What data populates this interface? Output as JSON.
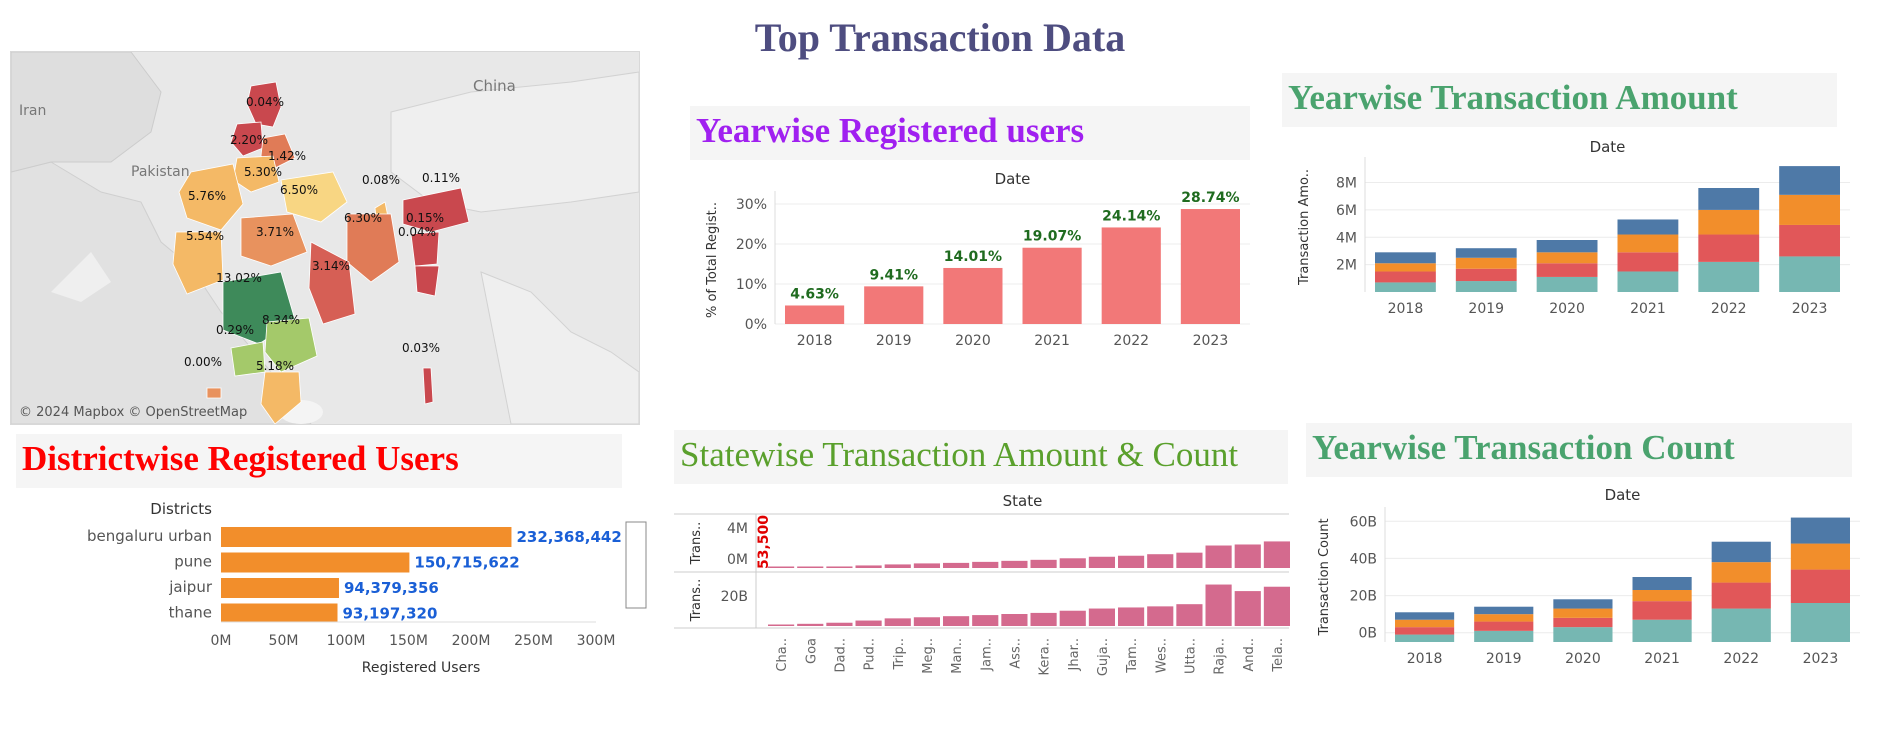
{
  "page_title": "Top Transaction Data",
  "colors": {
    "title": "#4e4d80",
    "users_title": "#a020f0",
    "amount_title": "#4aa36e",
    "district_title": "#ff0000",
    "statewise_title": "#5aa02c",
    "bar_salmon": "#f27878",
    "bar_orange": "#f28e2b",
    "bar_pink": "#d46a8e",
    "label_green": "#1f6b1f",
    "label_blue": "#1a5fd6",
    "label_red": "#e00000",
    "stack_teal": "#76b7b2",
    "stack_red": "#e15759",
    "stack_orange": "#f28e2b",
    "stack_blue": "#4e79a7"
  },
  "map": {
    "attribution": "© 2024 Mapbox © OpenStreetMap",
    "country_labels": [
      "Iran",
      "China",
      "Pakistan"
    ],
    "regions": [
      {
        "label": "0.04%",
        "color": "#c9484e"
      },
      {
        "label": "2.20%",
        "color": "#c9484e"
      },
      {
        "label": "1.42%",
        "color": "#e07b57"
      },
      {
        "label": "5.30%",
        "color": "#f4b966"
      },
      {
        "label": "5.76%",
        "color": "#f4b966"
      },
      {
        "label": "6.50%",
        "color": "#f8d683"
      },
      {
        "label": "0.08%",
        "color": "#f4b966"
      },
      {
        "label": "0.11%",
        "color": "#c9484e"
      },
      {
        "label": "6.30%",
        "color": "#e07b57"
      },
      {
        "label": "0.15%",
        "color": "#c9484e"
      },
      {
        "label": "0.04%",
        "color": "#c9484e"
      },
      {
        "label": "5.54%",
        "color": "#f4b966"
      },
      {
        "label": "3.71%",
        "color": "#e8925e"
      },
      {
        "label": "3.14%",
        "color": "#d65f55"
      },
      {
        "label": "13.02%",
        "color": "#3e8a5a"
      },
      {
        "label": "8.34%",
        "color": "#a4c96a"
      },
      {
        "label": "0.29%",
        "color": "#a4c96a"
      },
      {
        "label": "0.00%",
        "color": "#e8925e"
      },
      {
        "label": "5.18%",
        "color": "#f4b966"
      },
      {
        "label": "0.03%",
        "color": "#c9484e"
      }
    ]
  },
  "sections": {
    "users": "Yearwise Registered users",
    "amount": "Yearwise Transaction Amount",
    "district": "Districtwise Registered Users",
    "statewise": "Statewise Transaction Amount & Count",
    "count": "Yearwise Transaction Count"
  },
  "chart_data": [
    {
      "id": "yearwise-users",
      "type": "bar",
      "header": "Date",
      "ylabel": "% of Total Regist..",
      "categories": [
        "2018",
        "2019",
        "2020",
        "2021",
        "2022",
        "2023"
      ],
      "values": [
        4.63,
        9.41,
        14.01,
        19.07,
        24.14,
        28.74
      ],
      "value_labels": [
        "4.63%",
        "9.41%",
        "14.01%",
        "19.07%",
        "24.14%",
        "28.74%"
      ],
      "yticks": [
        "0%",
        "10%",
        "20%",
        "30%"
      ],
      "ylim": [
        0,
        32
      ]
    },
    {
      "id": "yearwise-amount",
      "type": "bar",
      "stacked": true,
      "header": "Date",
      "ylabel": "Transaction Amo..",
      "categories": [
        "2018",
        "2019",
        "2020",
        "2021",
        "2022",
        "2023"
      ],
      "yticks": [
        "2M",
        "4M",
        "6M",
        "8M"
      ],
      "ylim": [
        0,
        9.5
      ],
      "series": [
        {
          "values": [
            0.7,
            0.8,
            1.1,
            1.5,
            2.2,
            2.6
          ]
        },
        {
          "values": [
            0.8,
            0.9,
            1.0,
            1.4,
            2.0,
            2.3
          ]
        },
        {
          "values": [
            0.6,
            0.8,
            0.8,
            1.3,
            1.8,
            2.2
          ]
        },
        {
          "values": [
            0.8,
            0.7,
            0.9,
            1.1,
            1.6,
            2.1
          ]
        }
      ]
    },
    {
      "id": "districtwise-users",
      "type": "bar",
      "orientation": "horizontal",
      "header": "Districts",
      "xlabel": "Registered Users",
      "categories": [
        "bengaluru urban",
        "pune",
        "jaipur",
        "thane"
      ],
      "values": [
        232368442,
        150715622,
        94379356,
        93197320
      ],
      "value_labels": [
        "232,368,442",
        "150,715,622",
        "94,379,356",
        "93,197,320"
      ],
      "xticks": [
        "0M",
        "50M",
        "100M",
        "150M",
        "200M",
        "250M",
        "300M"
      ],
      "xlim": [
        0,
        300000000
      ]
    },
    {
      "id": "statewise",
      "type": "bar",
      "header": "State",
      "annotation": "53,500",
      "top_ylabel": "Trans..",
      "bottom_ylabel": "Trans..",
      "top_yticks": [
        "4M",
        "0M"
      ],
      "bottom_yticks": [
        "20B"
      ],
      "categories": [
        "Cha..",
        "Goa",
        "Dad..",
        "Pud..",
        "Trip..",
        "Meg..",
        "Man..",
        "Jam..",
        "Ass..",
        "Kera..",
        "Jhar..",
        "Guja..",
        "Tam..",
        "Wes..",
        "Utta..",
        "Raja..",
        "And..",
        "Tela.."
      ],
      "amount_values": [
        0.05,
        0.1,
        0.15,
        0.25,
        0.35,
        0.45,
        0.5,
        0.6,
        0.7,
        0.8,
        0.95,
        1.1,
        1.2,
        1.35,
        1.5,
        2.2,
        2.3,
        2.6
      ],
      "count_values": [
        0.5,
        1,
        1.5,
        2.5,
        3.5,
        4,
        4.5,
        5,
        5.5,
        6,
        7,
        8,
        8.5,
        9,
        10,
        19,
        16,
        18
      ]
    },
    {
      "id": "yearwise-count",
      "type": "bar",
      "stacked": true,
      "header": "Date",
      "ylabel": "Transaction Count",
      "categories": [
        "2018",
        "2019",
        "2020",
        "2021",
        "2022",
        "2023"
      ],
      "yticks": [
        "0B",
        "20B",
        "40B",
        "60B"
      ],
      "ylim": [
        -5,
        65
      ],
      "series": [
        {
          "values": [
            4,
            6,
            8,
            12,
            18,
            21
          ]
        },
        {
          "values": [
            4,
            5,
            5,
            10,
            14,
            18
          ]
        },
        {
          "values": [
            4,
            4,
            5,
            6,
            11,
            14
          ]
        },
        {
          "values": [
            4,
            4,
            5,
            7,
            11,
            14
          ]
        }
      ]
    }
  ]
}
